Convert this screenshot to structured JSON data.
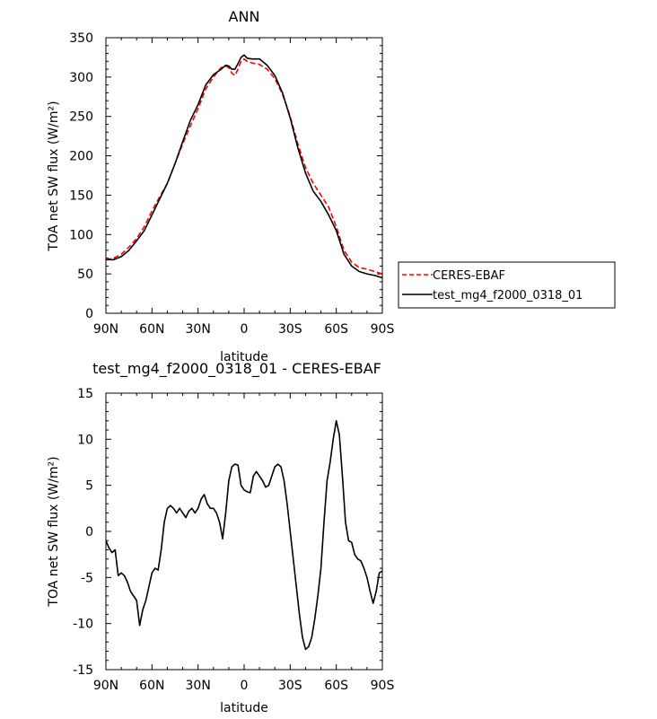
{
  "chart_data": [
    {
      "type": "line",
      "title": "ANN",
      "xlabel": "latitude",
      "ylabel": "TOA net SW flux (W/m²)",
      "xlim": [
        90,
        -90
      ],
      "ylim": [
        0,
        350
      ],
      "xticks": [
        {
          "value": 90,
          "label": "90N"
        },
        {
          "value": 60,
          "label": "60N"
        },
        {
          "value": 30,
          "label": "30N"
        },
        {
          "value": 0,
          "label": "0"
        },
        {
          "value": -30,
          "label": "30S"
        },
        {
          "value": -60,
          "label": "60S"
        },
        {
          "value": -90,
          "label": "90S"
        }
      ],
      "yticks": [
        0,
        50,
        100,
        150,
        200,
        250,
        300,
        350
      ],
      "grid": false,
      "legend": "outside-right",
      "series": [
        {
          "name": "CERES-EBAF",
          "color": "#ff0000",
          "style": "dashed",
          "x": [
            90,
            85,
            80,
            75,
            70,
            65,
            60,
            55,
            50,
            45,
            40,
            35,
            30,
            25,
            20,
            15,
            12,
            10,
            8,
            6,
            4,
            2,
            0,
            -2,
            -5,
            -10,
            -15,
            -20,
            -25,
            -30,
            -35,
            -40,
            -45,
            -50,
            -55,
            -60,
            -65,
            -70,
            -75,
            -80,
            -85,
            -90
          ],
          "y": [
            68,
            70,
            75,
            84,
            95,
            110,
            130,
            148,
            165,
            190,
            215,
            238,
            260,
            285,
            300,
            312,
            314,
            312,
            305,
            302,
            310,
            320,
            323,
            320,
            318,
            316,
            310,
            298,
            278,
            250,
            215,
            185,
            165,
            150,
            135,
            110,
            80,
            65,
            58,
            56,
            53,
            50
          ]
        },
        {
          "name": "test_mg4_f2000_0318_01",
          "color": "#000000",
          "style": "solid",
          "x": [
            90,
            85,
            80,
            75,
            70,
            65,
            60,
            55,
            50,
            45,
            40,
            35,
            30,
            25,
            20,
            15,
            12,
            10,
            8,
            6,
            4,
            2,
            0,
            -2,
            -5,
            -10,
            -15,
            -20,
            -25,
            -30,
            -35,
            -40,
            -45,
            -50,
            -55,
            -60,
            -65,
            -70,
            -75,
            -80,
            -85,
            -90
          ],
          "y": [
            68,
            68,
            72,
            80,
            92,
            105,
            125,
            145,
            165,
            190,
            218,
            245,
            265,
            290,
            303,
            310,
            315,
            314,
            310,
            310,
            317,
            325,
            328,
            324,
            323,
            323,
            315,
            302,
            280,
            248,
            210,
            178,
            155,
            142,
            125,
            105,
            75,
            60,
            53,
            50,
            48,
            45
          ]
        }
      ]
    },
    {
      "type": "line",
      "title": "test_mg4_f2000_0318_01 - CERES-EBAF",
      "xlabel": "latitude",
      "ylabel": "TOA net SW flux (W/m²)",
      "xlim": [
        90,
        -90
      ],
      "ylim": [
        -15,
        15
      ],
      "xticks": [
        {
          "value": 90,
          "label": "90N"
        },
        {
          "value": 60,
          "label": "60N"
        },
        {
          "value": 30,
          "label": "30N"
        },
        {
          "value": 0,
          "label": "0"
        },
        {
          "value": -30,
          "label": "30S"
        },
        {
          "value": -60,
          "label": "60S"
        },
        {
          "value": -90,
          "label": "90S"
        }
      ],
      "yticks": [
        -15,
        -10,
        -5,
        0,
        5,
        10,
        15
      ],
      "grid": false,
      "series": [
        {
          "color": "#000000",
          "style": "solid",
          "x": [
            90,
            88,
            86,
            84,
            82,
            80,
            78,
            76,
            74,
            72,
            70,
            68,
            66,
            64,
            62,
            60,
            58,
            56,
            54,
            52,
            50,
            48,
            46,
            44,
            42,
            40,
            38,
            36,
            34,
            32,
            30,
            28,
            26,
            24,
            22,
            20,
            18,
            16,
            14,
            12,
            10,
            8,
            6,
            4,
            2,
            0,
            -2,
            -4,
            -6,
            -8,
            -10,
            -12,
            -14,
            -16,
            -18,
            -20,
            -22,
            -24,
            -26,
            -28,
            -30,
            -32,
            -34,
            -36,
            -38,
            -40,
            -42,
            -44,
            -46,
            -48,
            -50,
            -52,
            -54,
            -56,
            -58,
            -60,
            -62,
            -64,
            -66,
            -68,
            -70,
            -72,
            -74,
            -76,
            -78,
            -80,
            -82,
            -84,
            -86,
            -88,
            -90
          ],
          "y": [
            -1.0,
            -1.8,
            -2.3,
            -2.0,
            -4.8,
            -4.5,
            -4.8,
            -5.5,
            -6.5,
            -7.0,
            -7.5,
            -10.2,
            -8.5,
            -7.5,
            -6.0,
            -4.5,
            -4.0,
            -4.2,
            -2.0,
            1.0,
            2.5,
            2.8,
            2.5,
            2.0,
            2.5,
            2.0,
            1.5,
            2.2,
            2.5,
            2.0,
            2.5,
            3.5,
            4.0,
            3.0,
            2.5,
            2.5,
            2.0,
            1.0,
            -0.8,
            2.0,
            5.5,
            7.0,
            7.3,
            7.2,
            5.0,
            4.5,
            4.3,
            4.2,
            6.0,
            6.5,
            6.0,
            5.5,
            4.8,
            5.0,
            6.0,
            7.0,
            7.3,
            7.0,
            5.5,
            3.0,
            0.0,
            -3.0,
            -6.0,
            -9.0,
            -11.5,
            -12.8,
            -12.5,
            -11.5,
            -9.5,
            -7.0,
            -4.0,
            1.0,
            5.5,
            7.5,
            10.0,
            12.0,
            10.5,
            6.0,
            1.0,
            -1.0,
            -1.2,
            -2.5,
            -3.0,
            -3.2,
            -4.0,
            -5.0,
            -6.5,
            -7.8,
            -6.5,
            -4.5,
            -4.3
          ]
        }
      ]
    }
  ]
}
